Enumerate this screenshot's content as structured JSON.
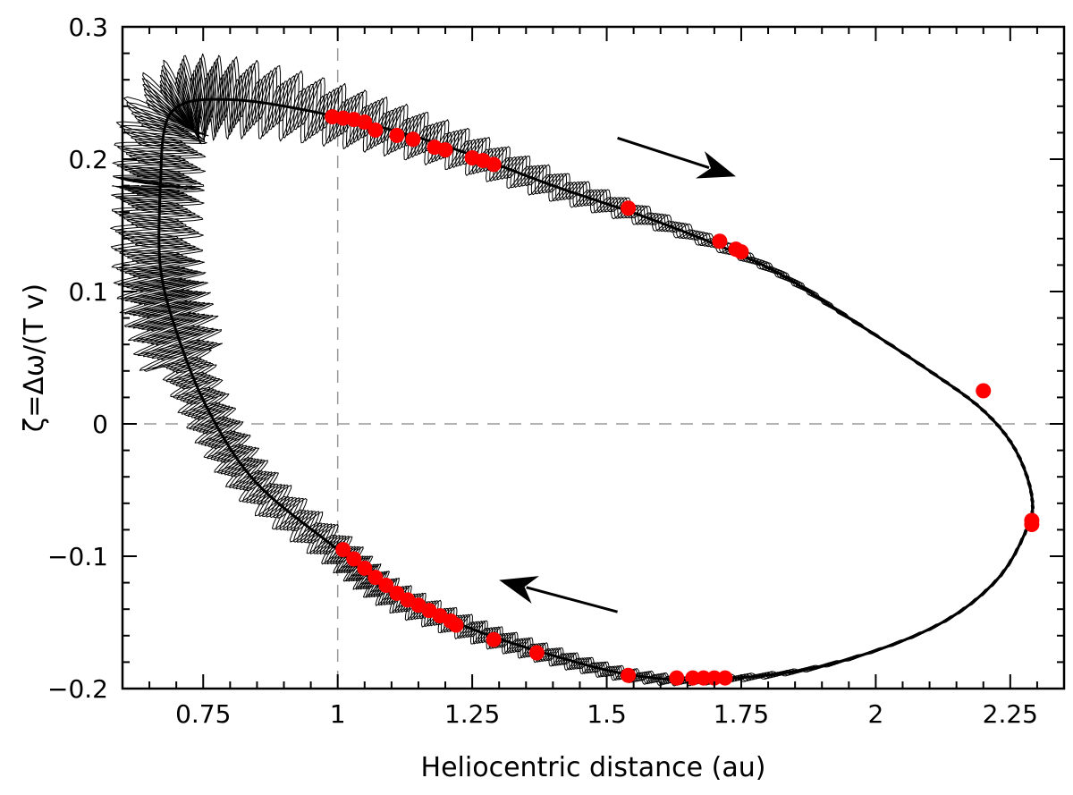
{
  "chart_data": {
    "type": "scatter",
    "title": "",
    "xlabel": "Heliocentric distance (au)",
    "ylabel": "ζ=Δω/(T v)",
    "xlim": [
      0.6,
      2.35
    ],
    "ylim": [
      -0.2,
      0.3
    ],
    "xticks": [
      0.75,
      1,
      1.25,
      1.5,
      1.75,
      2,
      2.25
    ],
    "xtick_labels": [
      "0.75",
      "1",
      "1.25",
      "1.5",
      "1.75",
      "2",
      "2.25"
    ],
    "yticks": [
      -0.2,
      -0.1,
      0,
      0.1,
      0.2,
      0.3
    ],
    "ytick_labels": [
      "−0.2",
      "−0.1",
      "0",
      "0.1",
      "0.2",
      "0.3"
    ],
    "reference_lines": {
      "vertical_x": 1.0,
      "horizontal_y": 0.0
    },
    "trajectory_band": {
      "description": "dense black oscillating loop traced clockwise",
      "path": [
        [
          0.67,
          0.18
        ],
        [
          0.69,
          0.235
        ],
        [
          0.8,
          0.245
        ],
        [
          1.0,
          0.232
        ],
        [
          1.2,
          0.21
        ],
        [
          1.4,
          0.18
        ],
        [
          1.6,
          0.152
        ],
        [
          1.8,
          0.118
        ],
        [
          1.95,
          0.08
        ],
        [
          2.1,
          0.04
        ],
        [
          2.2,
          0.01
        ],
        [
          2.26,
          -0.02
        ],
        [
          2.29,
          -0.055
        ],
        [
          2.28,
          -0.08
        ],
        [
          2.22,
          -0.12
        ],
        [
          2.1,
          -0.155
        ],
        [
          1.9,
          -0.183
        ],
        [
          1.7,
          -0.193
        ],
        [
          1.55,
          -0.19
        ],
        [
          1.4,
          -0.175
        ],
        [
          1.25,
          -0.155
        ],
        [
          1.1,
          -0.128
        ],
        [
          1.0,
          -0.095
        ],
        [
          0.85,
          -0.045
        ],
        [
          0.76,
          0.01
        ],
        [
          0.7,
          0.07
        ],
        [
          0.67,
          0.12
        ],
        [
          0.67,
          0.18
        ]
      ],
      "oscillation_amplitude_upper_left": 0.05,
      "oscillation_amplitude_lower_left": 0.03
    },
    "points": {
      "color": "#ff0000",
      "x": [
        0.99,
        1.01,
        1.03,
        1.05,
        1.07,
        1.11,
        1.14,
        1.18,
        1.2,
        1.25,
        1.27,
        1.29,
        1.54,
        1.71,
        1.74,
        1.75,
        2.2,
        2.29,
        2.29,
        1.01,
        1.03,
        1.05,
        1.07,
        1.09,
        1.11,
        1.13,
        1.15,
        1.17,
        1.19,
        1.21,
        1.22,
        1.29,
        1.37,
        1.54,
        1.63,
        1.66,
        1.68,
        1.7,
        1.72
      ],
      "y": [
        0.232,
        0.231,
        0.23,
        0.228,
        0.222,
        0.218,
        0.215,
        0.209,
        0.207,
        0.201,
        0.199,
        0.196,
        0.163,
        0.138,
        0.132,
        0.13,
        0.025,
        -0.073,
        -0.076,
        -0.095,
        -0.102,
        -0.109,
        -0.116,
        -0.122,
        -0.128,
        -0.133,
        -0.137,
        -0.141,
        -0.145,
        -0.149,
        -0.152,
        -0.163,
        -0.173,
        -0.19,
        -0.192,
        -0.192,
        -0.192,
        -0.192,
        -0.192
      ]
    },
    "arrows": [
      {
        "name": "upper-direction-arrow",
        "from": [
          1.52,
          0.216
        ],
        "to": [
          1.74,
          0.187
        ]
      },
      {
        "name": "lower-direction-arrow",
        "from": [
          1.52,
          -0.142
        ],
        "to": [
          1.3,
          -0.118
        ]
      }
    ]
  }
}
